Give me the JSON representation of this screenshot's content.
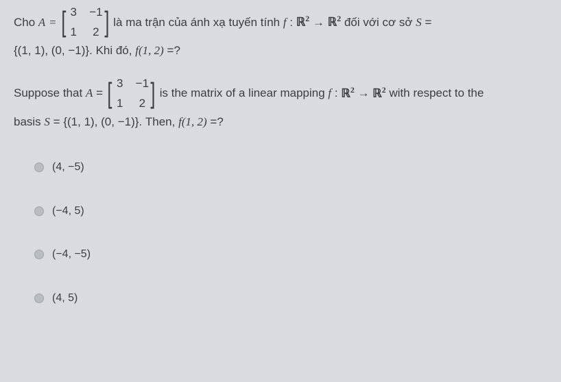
{
  "question": {
    "vi": {
      "part1": "Cho",
      "part2": "là ma trận của ánh xạ tuyến tính",
      "part3": "đối với cơ sở",
      "part4": "Khi đó,"
    },
    "en": {
      "part1": "Suppose that",
      "part2": "is the matrix of a linear mapping",
      "part3": "with respect to the",
      "part4": "basis",
      "part5": "Then,"
    },
    "A_label": "A",
    "equals": "=",
    "matrix": {
      "a11": "3",
      "a12": "−1",
      "a21": "1",
      "a22": "2"
    },
    "f_label": "f",
    "colon": ":",
    "R": "ℝ",
    "sup2": "2",
    "arrow": "→",
    "S_label": "S",
    "basis_set": "{(1, 1), (0, −1)}",
    "period": ".",
    "f_eval": "f(1, 2)",
    "eq_q": "=?"
  },
  "options": {
    "a": "(4, −5)",
    "b": "(−4, 5)",
    "c": "(−4, −5)",
    "d": "(4, 5)"
  },
  "colors": {
    "background": "#d8dce0",
    "text": "#3a3e42",
    "radio": "#b8bdc2"
  }
}
